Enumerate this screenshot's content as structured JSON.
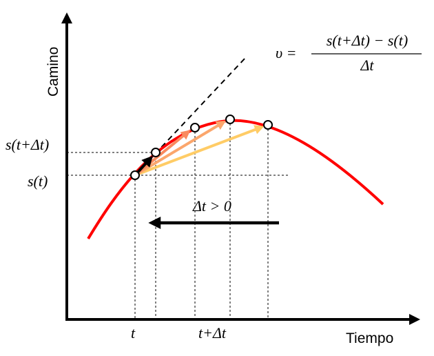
{
  "axes": {
    "y_label": "Camino",
    "x_label": "Tiempo"
  },
  "labels": {
    "s_t_dt": "s(t+Δt)",
    "s_t": "s(t)",
    "t": "t",
    "t_dt": "t+Δt",
    "dt_condition": "Δt > 0"
  },
  "formula": {
    "lhs": "υ =",
    "numerator": "s(t+Δt) − s(t)",
    "denominator": "Δt"
  },
  "colors": {
    "curve": "#ff0000",
    "secant1": "#000000",
    "secant2": "#f98a5e",
    "secant3": "#fba66c",
    "secant4": "#ffcc66"
  }
}
